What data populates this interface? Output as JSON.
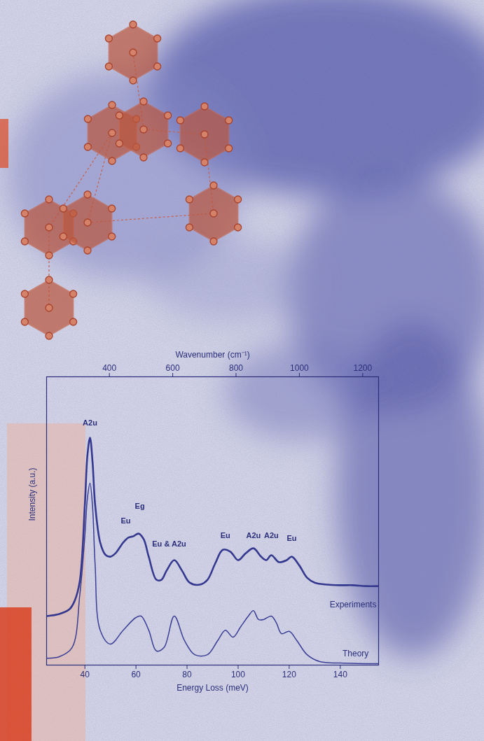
{
  "chart_data": {
    "type": "line",
    "xlabel": "Energy Loss (meV)",
    "ylabel": "Intensity (a.u.)",
    "x2label": "Wavenumber (cm⁻¹)",
    "xlim": [
      25,
      155
    ],
    "xticks": [
      40,
      60,
      80,
      100,
      120,
      140
    ],
    "x2lim": [
      201.6,
      1250.2
    ],
    "x2ticks": [
      400,
      600,
      800,
      1000,
      1200
    ],
    "ylim": [
      0,
      100
    ],
    "yticks": [],
    "tick_labels": "x",
    "series": [
      {
        "name": "Experiments",
        "color": "#34398f",
        "label_x": 145,
        "label_y": 21,
        "x": [
          25,
          30,
          34,
          36,
          38,
          40,
          41,
          42,
          43,
          44,
          46,
          48,
          50,
          52,
          55,
          57,
          59,
          61,
          63,
          65,
          68,
          70,
          72,
          75,
          78,
          81,
          85,
          88,
          91,
          94,
          97,
          100,
          103,
          106,
          109,
          111,
          113,
          116,
          119,
          121,
          124,
          127,
          130,
          135,
          140,
          145,
          150,
          155
        ],
        "values": [
          17.0,
          17.7,
          19.4,
          22.3,
          29.1,
          55.8,
          72.8,
          78.9,
          70.4,
          55.8,
          42.5,
          38.3,
          37.6,
          38.8,
          42.5,
          44.2,
          44.7,
          45.6,
          43.7,
          37.6,
          29.6,
          29.6,
          32.8,
          36.4,
          32.8,
          28.6,
          27.9,
          29.6,
          35.2,
          40.0,
          39.3,
          36.4,
          38.8,
          40.5,
          37.6,
          36.4,
          38.1,
          35.7,
          36.4,
          37.6,
          34.5,
          30.3,
          28.6,
          27.9,
          27.7,
          27.7,
          27.4,
          27.4
        ]
      },
      {
        "name": "Theory",
        "color": "#3a3f95",
        "label_x": 146,
        "label_y": 4,
        "x": [
          25,
          30,
          35,
          38,
          40,
          41,
          42,
          43,
          44,
          46,
          50,
          55,
          60,
          62,
          65,
          68,
          71,
          75,
          79,
          83,
          88,
          92,
          95,
          98,
          101,
          104,
          106,
          108,
          110,
          113,
          115,
          117,
          120,
          123,
          127,
          132,
          140,
          155
        ],
        "values": [
          2.4,
          2.9,
          6.1,
          24.3,
          45.0,
          58.0,
          63.1,
          55.0,
          35.0,
          12.1,
          7.3,
          12.1,
          16.5,
          17.0,
          12.1,
          4.9,
          6.1,
          17.0,
          8.5,
          3.6,
          3.6,
          8.5,
          12.1,
          9.7,
          13.3,
          17.0,
          18.9,
          15.8,
          15.8,
          17.0,
          14.6,
          10.9,
          11.7,
          8.5,
          3.6,
          1.2,
          0.7,
          0.5
        ]
      }
    ],
    "annotations": [
      {
        "text": "A2u",
        "x": 42,
        "y": 84
      },
      {
        "text": "Eu",
        "x": 56,
        "y": 50
      },
      {
        "text": "Eg",
        "x": 61.5,
        "y": 55
      },
      {
        "text": "Eu & A2u",
        "x": 73,
        "y": 42
      },
      {
        "text": "Eu",
        "x": 95,
        "y": 45
      },
      {
        "text": "A2u",
        "x": 106,
        "y": 45
      },
      {
        "text": "A2u",
        "x": 113,
        "y": 45
      },
      {
        "text": "Eu",
        "x": 121,
        "y": 44
      }
    ]
  }
}
